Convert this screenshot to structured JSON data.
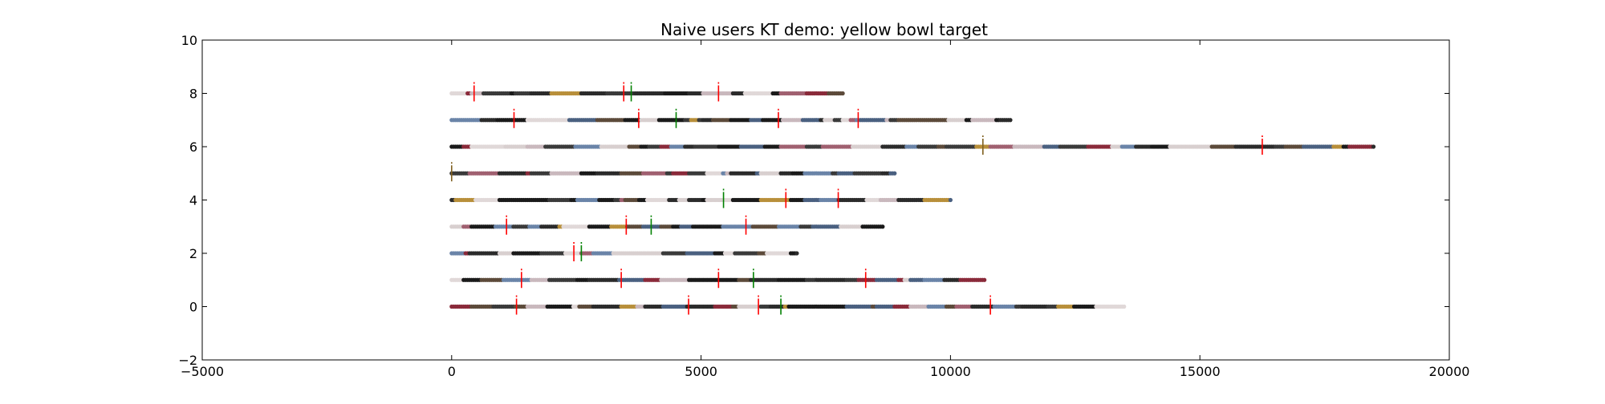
{
  "chart_data": {
    "type": "scatter",
    "title": "Naive users KT demo: yellow bowl target",
    "xlabel": "",
    "ylabel": "",
    "xlim": [
      -5000,
      20000
    ],
    "ylim": [
      -2,
      10
    ],
    "x_ticks": [
      -5000,
      0,
      5000,
      10000,
      15000,
      20000
    ],
    "y_ticks": [
      -2,
      0,
      2,
      4,
      6,
      8,
      10
    ],
    "x_tick_labels": [
      "−5000",
      "0",
      "5000",
      "10000",
      "15000",
      "20000"
    ],
    "y_tick_labels": [
      "−2",
      "0",
      "2",
      "4",
      "6",
      "8",
      "10"
    ],
    "grid": false,
    "legend": "none",
    "colors": {
      "axes": "#000000",
      "red_marker": "#ff0000",
      "green_marker": "#008000",
      "brown_marker": "#806020"
    },
    "palette": [
      "#1a1a1a",
      "#2b2b2b",
      "#3a3a3a",
      "#d8cfcf",
      "#c9b8bd",
      "#8a2a3a",
      "#b88f3a",
      "#4a6080",
      "#6a84a8",
      "#5c4a3a",
      "#e0d8d8",
      "#a06070"
    ],
    "rows": [
      {
        "y": 0,
        "x_start": 0,
        "x_end": 13500,
        "red": [
          1300,
          4750,
          6150,
          10800
        ],
        "green": [
          6600
        ],
        "brown": []
      },
      {
        "y": 1,
        "x_start": 0,
        "x_end": 10700,
        "red": [
          1400,
          3400,
          5350,
          8300
        ],
        "green": [
          6050
        ],
        "brown": []
      },
      {
        "y": 2,
        "x_start": 0,
        "x_end": 6950,
        "red": [
          2450
        ],
        "green": [
          2600
        ],
        "brown": []
      },
      {
        "y": 3,
        "x_start": 0,
        "x_end": 8650,
        "red": [
          1100,
          3500,
          5900
        ],
        "green": [
          4000
        ],
        "brown": []
      },
      {
        "y": 4,
        "x_start": 0,
        "x_end": 10000,
        "red": [
          6700,
          7750
        ],
        "green": [
          5450
        ],
        "brown": []
      },
      {
        "y": 5,
        "x_start": 0,
        "x_end": 8900,
        "red": [],
        "green": [],
        "brown": [
          0
        ]
      },
      {
        "y": 6,
        "x_start": 0,
        "x_end": 18500,
        "red": [
          16250
        ],
        "green": [],
        "brown": [
          10650
        ]
      },
      {
        "y": 7,
        "x_start": 0,
        "x_end": 11200,
        "red": [
          1250,
          3750,
          6550,
          8150
        ],
        "green": [
          4500
        ],
        "brown": []
      },
      {
        "y": 8,
        "x_start": 0,
        "x_end": 7850,
        "red": [
          450,
          3450,
          5350
        ],
        "green": [
          3600
        ],
        "brown": []
      }
    ]
  }
}
